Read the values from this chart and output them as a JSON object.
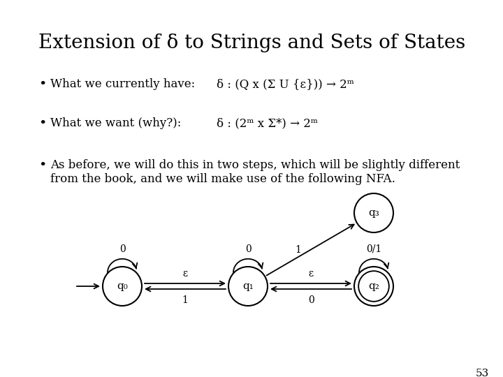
{
  "title": "Extension of δ to Strings and Sets of States",
  "title_fontsize": 20,
  "bullet1_label": "What we currently have:",
  "bullet1_formula": "δ : (Q x (Σ U {ε})) → 2ᵐ",
  "bullet2_label": "What we want (why?):",
  "bullet2_formula": "δ : (2ᵐ x Σ*) → 2ᵐ",
  "bullet3_text_1": "As before, we will do this in two steps, which will be slightly different",
  "bullet3_text_2": "from the book, and we will make use of the following NFA.",
  "page_number": "53",
  "bg_color": "#ffffff",
  "text_color": "#000000",
  "node_q0": "q₀",
  "node_q1": "q₁",
  "node_q2": "q₂",
  "node_q3": "q₃",
  "font_size_body": 12,
  "font_size_formula": 12,
  "font_size_node": 11,
  "font_size_edge": 10
}
